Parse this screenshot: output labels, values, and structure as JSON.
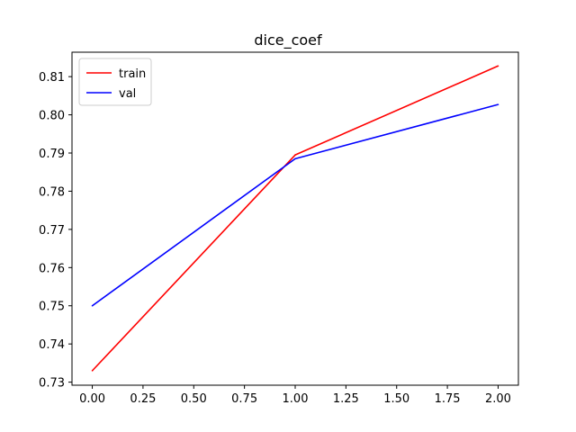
{
  "chart_data": {
    "type": "line",
    "title": "dice_coef",
    "xlabel": "",
    "ylabel": "",
    "x": [
      0,
      1,
      2
    ],
    "xlim": [
      -0.1,
      2.1
    ],
    "ylim": [
      0.7292,
      0.8164
    ],
    "xticks": [
      0.0,
      0.25,
      0.5,
      0.75,
      1.0,
      1.25,
      1.5,
      1.75,
      2.0
    ],
    "xtick_labels": [
      "0.00",
      "0.25",
      "0.50",
      "0.75",
      "1.00",
      "1.25",
      "1.50",
      "1.75",
      "2.00"
    ],
    "yticks": [
      0.73,
      0.74,
      0.75,
      0.76,
      0.77,
      0.78,
      0.79,
      0.8,
      0.81
    ],
    "ytick_labels": [
      "0.73",
      "0.74",
      "0.75",
      "0.76",
      "0.77",
      "0.78",
      "0.79",
      "0.80",
      "0.81"
    ],
    "grid": false,
    "legend_position": "upper-left",
    "series": [
      {
        "name": "train",
        "color": "#ff0000",
        "values": [
          0.733,
          0.7895,
          0.8128
        ]
      },
      {
        "name": "val",
        "color": "#0000ff",
        "values": [
          0.75,
          0.7885,
          0.8027
        ]
      }
    ]
  }
}
